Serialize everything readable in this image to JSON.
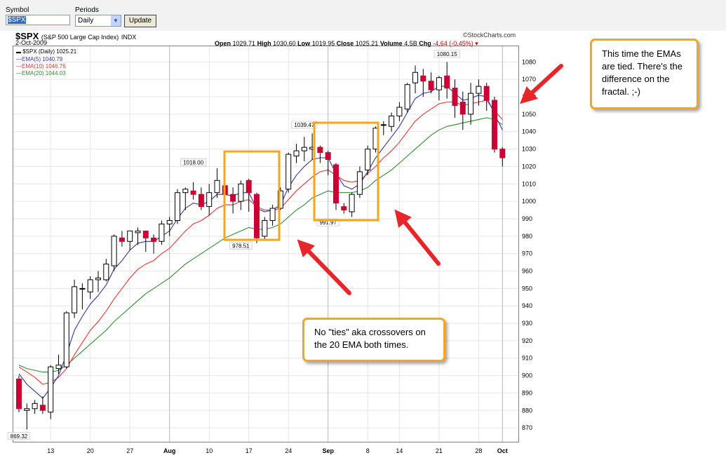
{
  "controls": {
    "symbol_label": "Symbol",
    "symbol_value": "$SPX",
    "periods_label": "Periods",
    "periods_value": "Daily",
    "update_button": "Update"
  },
  "header": {
    "symbol": "$SPX",
    "name": "(S&P 500 Large Cap Index)",
    "exchange": "INDX",
    "date": "2-Oct-2009",
    "credit": "©StockCharts.com",
    "open_label": "Open",
    "open": "1029.71",
    "high_label": "High",
    "high": "1030.60",
    "low_label": "Low",
    "low": "1019.95",
    "close_label": "Close",
    "close": "1025.21",
    "volume_label": "Volume",
    "volume": "4.5B",
    "chg_label": "Chg",
    "chg": "-4.64 (-0.45%)"
  },
  "legend": {
    "price": "$SPX (Daily) 1025.21",
    "ema5": "EMA(5) 1040.79",
    "ema10": "EMA(10) 1046.76",
    "ema20": "EMA(20) 1044.03"
  },
  "callouts": {
    "top_right": "This time the EMAs are tied.  There's the difference on the fractal.  ;-)",
    "bottom": "No \"ties\" aka crossovers on the 20 EMA both times."
  },
  "colors": {
    "up": "#ffffff",
    "down": "#cc0033",
    "ema5": "#3333aa",
    "ema10": "#ee3333",
    "ema20": "#2e8b2e",
    "callout_border": "#f7a519",
    "arrow": "#e8262a"
  },
  "chart_data": {
    "type": "candlestick",
    "title": "$SPX (S&P 500 Large Cap Index)",
    "ylim": [
      862,
      1089
    ],
    "y_ticks": [
      870,
      880,
      890,
      900,
      910,
      920,
      930,
      940,
      950,
      960,
      970,
      980,
      990,
      1000,
      1010,
      1020,
      1030,
      1040,
      1050,
      1060,
      1070,
      1080
    ],
    "x_ticks": [
      {
        "index": 4,
        "label": "13",
        "bold": false
      },
      {
        "index": 9,
        "label": "20",
        "bold": false
      },
      {
        "index": 14,
        "label": "27",
        "bold": false
      },
      {
        "index": 19,
        "label": "Aug",
        "bold": true
      },
      {
        "index": 24,
        "label": "10",
        "bold": false
      },
      {
        "index": 29,
        "label": "17",
        "bold": false
      },
      {
        "index": 34,
        "label": "24",
        "bold": false
      },
      {
        "index": 39,
        "label": "Sep",
        "bold": true
      },
      {
        "index": 44,
        "label": "8",
        "bold": false
      },
      {
        "index": 48,
        "label": "14",
        "bold": false
      },
      {
        "index": 53,
        "label": "21",
        "bold": false
      },
      {
        "index": 58,
        "label": "28",
        "bold": false
      },
      {
        "index": 61,
        "label": "Oct",
        "bold": true
      }
    ],
    "annotations": [
      {
        "index": 0,
        "value": 869.32,
        "label": "869.32",
        "pos": "below"
      },
      {
        "index": 22,
        "value": 1018.0,
        "label": "1018.00",
        "pos": "above"
      },
      {
        "index": 28,
        "value": 978.51,
        "label": "978.51",
        "pos": "below"
      },
      {
        "index": 36,
        "value": 1039.47,
        "label": "1039.47",
        "pos": "above"
      },
      {
        "index": 39,
        "value": 991.97,
        "label": "991.97",
        "pos": "below"
      },
      {
        "index": 54,
        "value": 1080.15,
        "label": "1080.15",
        "pos": "above"
      }
    ],
    "candles": [
      [
        898,
        900,
        879,
        881
      ],
      [
        880,
        884,
        869,
        881
      ],
      [
        881,
        886,
        878,
        884
      ],
      [
        883,
        888,
        878,
        880
      ],
      [
        879,
        906,
        875,
        905
      ],
      [
        904,
        912,
        901,
        906
      ],
      [
        905,
        937,
        904,
        936
      ],
      [
        936,
        955,
        933,
        951
      ],
      [
        950,
        953,
        938,
        950
      ],
      [
        948,
        957,
        944,
        955
      ],
      [
        955,
        960,
        948,
        956
      ],
      [
        955,
        967,
        954,
        964
      ],
      [
        963,
        981,
        960,
        980
      ],
      [
        979,
        983,
        974,
        977
      ],
      [
        977,
        982,
        972,
        983
      ],
      [
        982,
        985,
        975,
        983
      ],
      [
        983,
        983,
        971,
        979
      ],
      [
        979,
        981,
        970,
        977
      ],
      [
        977,
        989,
        975,
        987
      ],
      [
        987,
        991,
        980,
        989
      ],
      [
        989,
        1007,
        987,
        1005
      ],
      [
        1005,
        1008,
        995,
        1007
      ],
      [
        1006,
        1011,
        1001,
        1004
      ],
      [
        1004,
        1008,
        995,
        997
      ],
      [
        997,
        1010,
        992,
        1005
      ],
      [
        1005,
        1019,
        1002,
        1012
      ],
      [
        1009,
        1012,
        997,
        1004
      ],
      [
        1004,
        1008,
        993,
        1000
      ],
      [
        1000,
        1012,
        995,
        1010
      ],
      [
        1012,
        1013,
        994,
        1005
      ],
      [
        1004,
        1005,
        976,
        979
      ],
      [
        980,
        991,
        978,
        989
      ],
      [
        989,
        998,
        986,
        996
      ],
      [
        996,
        1008,
        995,
        1006
      ],
      [
        1007,
        1028,
        1005,
        1027
      ],
      [
        1026,
        1033,
        1022,
        1029
      ],
      [
        1029,
        1037,
        1023,
        1031
      ],
      [
        1030,
        1039,
        1024,
        1031
      ],
      [
        1031,
        1032,
        1022,
        1028
      ],
      [
        1028,
        1029,
        1015,
        1024
      ],
      [
        1021,
        1022,
        995,
        999
      ],
      [
        997,
        999,
        993,
        995
      ],
      [
        994,
        1005,
        991,
        1004
      ],
      [
        1004,
        1020,
        1002,
        1017
      ],
      [
        1018,
        1032,
        1015,
        1030
      ],
      [
        1030,
        1043,
        1028,
        1042
      ],
      [
        1044,
        1046,
        1038,
        1044
      ],
      [
        1043,
        1051,
        1040,
        1049
      ],
      [
        1049,
        1057,
        1046,
        1054
      ],
      [
        1053,
        1068,
        1051,
        1067
      ],
      [
        1068,
        1078,
        1062,
        1074
      ],
      [
        1072,
        1076,
        1060,
        1069
      ],
      [
        1069,
        1074,
        1062,
        1064
      ],
      [
        1064,
        1072,
        1058,
        1071
      ],
      [
        1072,
        1080,
        1059,
        1065
      ],
      [
        1065,
        1070,
        1048,
        1055
      ],
      [
        1057,
        1063,
        1041,
        1050
      ],
      [
        1050,
        1068,
        1044,
        1062
      ],
      [
        1062,
        1070,
        1055,
        1066
      ],
      [
        1066,
        1068,
        1052,
        1058
      ],
      [
        1058,
        1060,
        1028,
        1030
      ],
      [
        1030,
        1031,
        1020,
        1025
      ]
    ],
    "ema5": [
      901,
      895,
      891,
      887,
      893,
      900,
      912,
      926,
      934,
      941,
      946,
      952,
      961,
      966,
      972,
      976,
      977,
      977,
      980,
      983,
      990,
      996,
      999,
      998,
      1000,
      1004,
      1004,
      1003,
      1005,
      1005,
      996,
      994,
      995,
      998,
      1008,
      1015,
      1020,
      1024,
      1025,
      1025,
      1016,
      1009,
      1007,
      1010,
      1017,
      1025,
      1031,
      1037,
      1043,
      1051,
      1059,
      1062,
      1063,
      1066,
      1066,
      1062,
      1058,
      1059,
      1061,
      1060,
      1050,
      1041
    ],
    "ema10": [
      905,
      902,
      899,
      895,
      896,
      899,
      904,
      912,
      919,
      926,
      931,
      937,
      944,
      950,
      956,
      961,
      964,
      966,
      970,
      973,
      978,
      983,
      987,
      989,
      992,
      996,
      998,
      998,
      1000,
      1001,
      997,
      995,
      995,
      996,
      1001,
      1006,
      1010,
      1014,
      1017,
      1018,
      1015,
      1012,
      1011,
      1012,
      1016,
      1020,
      1025,
      1029,
      1034,
      1040,
      1046,
      1050,
      1053,
      1056,
      1057,
      1057,
      1055,
      1056,
      1057,
      1058,
      1052,
      1047
    ],
    "ema20": [
      906,
      904,
      903,
      902,
      902,
      903,
      906,
      910,
      914,
      918,
      922,
      926,
      931,
      935,
      939,
      943,
      947,
      950,
      953,
      956,
      960,
      964,
      967,
      970,
      973,
      976,
      979,
      981,
      983,
      985,
      984,
      984,
      985,
      987,
      991,
      995,
      998,
      1002,
      1004,
      1006,
      1005,
      1005,
      1005,
      1006,
      1008,
      1012,
      1015,
      1018,
      1022,
      1026,
      1030,
      1034,
      1038,
      1041,
      1043,
      1044,
      1045,
      1046,
      1047,
      1048,
      1047,
      1044
    ]
  }
}
